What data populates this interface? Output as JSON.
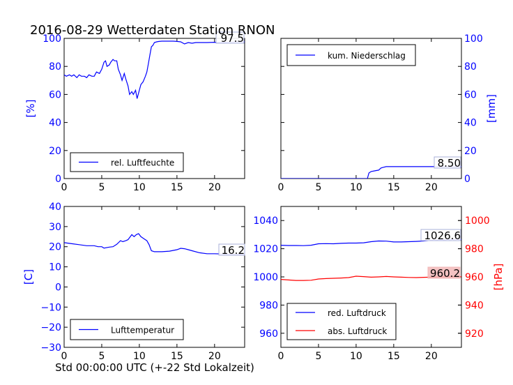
{
  "chart_data": {
    "title": "2016-08-29 Wetterdaten Station RNON",
    "xlabel": "Std 00:00:00 UTC (+-22 Std Lokalzeit)",
    "colors": {
      "primary": "#0000ff",
      "secondary": "#ff0000",
      "frame": "#000000"
    },
    "panels": [
      {
        "id": "humidity",
        "type": "line",
        "ylabel": "[%]",
        "ylabel_side": "left",
        "xlim": [
          0,
          24
        ],
        "ylim": [
          0,
          100
        ],
        "xticks": [
          0,
          5,
          10,
          15,
          20
        ],
        "yticks": [
          0,
          20,
          40,
          60,
          80,
          100
        ],
        "legend_position": "lower-left",
        "series": [
          {
            "name": "rel. Luftfeuchte",
            "color": "#0000ff",
            "last_value_label": "97.5",
            "x": [
              0,
              0.3,
              0.7,
              1.0,
              1.3,
              1.7,
              2.0,
              2.3,
              2.7,
              3.0,
              3.3,
              3.7,
              4.0,
              4.3,
              4.7,
              5.0,
              5.3,
              5.5,
              5.7,
              6.0,
              6.2,
              6.5,
              6.7,
              7.0,
              7.2,
              7.5,
              7.7,
              8.0,
              8.2,
              8.5,
              8.7,
              9.0,
              9.2,
              9.5,
              9.7,
              10.0,
              10.2,
              10.5,
              10.8,
              11.0,
              11.2,
              11.4,
              11.6,
              11.8,
              12.0,
              12.3,
              12.6,
              13.0,
              13.5,
              14.0,
              14.5,
              15.0,
              15.5,
              16.0,
              16.5,
              17.0,
              17.5,
              18.0,
              19.0,
              20.0,
              21.0,
              22.0,
              23.0,
              24.0
            ],
            "y": [
              74,
              73,
              74,
              73,
              74,
              72,
              74,
              73,
              73,
              72,
              74,
              73,
              73,
              76,
              75,
              78,
              83,
              84,
              80,
              81,
              83,
              85,
              84,
              84,
              78,
              74,
              70,
              75,
              71,
              66,
              60,
              62,
              60,
              63,
              57,
              63,
              67,
              69,
              73,
              76,
              82,
              88,
              94,
              95,
              97,
              97.5,
              97.8,
              98,
              98,
              98,
              98,
              97.8,
              97.5,
              96,
              97,
              96.5,
              97,
              97,
              97,
              97.2,
              97,
              97.3,
              97.5,
              97.5
            ]
          }
        ]
      },
      {
        "id": "precipitation",
        "type": "line",
        "ylabel": "[mm]",
        "ylabel_side": "right",
        "xlim": [
          0,
          24
        ],
        "ylim": [
          0,
          100
        ],
        "xticks": [
          0,
          5,
          10,
          15,
          20
        ],
        "yticks": [
          0,
          20,
          40,
          60,
          80,
          100
        ],
        "legend_position": "upper-left",
        "series": [
          {
            "name": "kum. Niederschlag",
            "color": "#0000ff",
            "last_value_label": "8.50",
            "x": [
              0,
              11.5,
              11.7,
              12.0,
              12.5,
              13.0,
              13.3,
              13.6,
              14.0,
              15.0,
              16.0,
              18.0,
              20.0,
              22.0,
              24.0
            ],
            "y": [
              0,
              0,
              4,
              5,
              5.5,
              6,
              7.5,
              8,
              8.5,
              8.5,
              8.5,
              8.5,
              8.5,
              8.5,
              8.5
            ]
          }
        ]
      },
      {
        "id": "temperature",
        "type": "line",
        "ylabel": "[C]",
        "ylabel_side": "left",
        "xlim": [
          0,
          24
        ],
        "ylim": [
          -30,
          40
        ],
        "xticks": [
          0,
          5,
          10,
          15,
          20
        ],
        "yticks": [
          -30,
          -20,
          -10,
          0,
          10,
          20,
          30,
          40
        ],
        "legend_position": "lower-left",
        "series": [
          {
            "name": "Lufttemperatur",
            "color": "#0000ff",
            "last_value_label": "16.2",
            "x": [
              0,
              1,
              2,
              3,
              4,
              4.5,
              5,
              5.3,
              6,
              6.5,
              7,
              7.5,
              7.8,
              8.2,
              8.5,
              9.0,
              9.3,
              9.6,
              9.9,
              10.2,
              10.6,
              11.0,
              11.3,
              11.6,
              12.0,
              13.0,
              14.0,
              15.0,
              15.5,
              16.0,
              16.5,
              17.0,
              18.0,
              19.0,
              20.0,
              21.0,
              22.0,
              23.0,
              24.0
            ],
            "y": [
              22,
              21.5,
              21,
              20.5,
              20.5,
              20,
              20,
              19.3,
              19.8,
              20,
              21.2,
              23,
              22.5,
              23,
              23.5,
              26,
              25,
              26,
              26.5,
              25,
              24,
              23,
              21,
              18,
              17.5,
              17.5,
              17.8,
              18.5,
              19.2,
              19,
              18.5,
              18,
              17,
              16.5,
              16.5,
              16.4,
              16.2,
              16.2,
              16.2
            ]
          }
        ]
      },
      {
        "id": "pressure",
        "type": "line",
        "ylabel": "[hPa]",
        "ylabel_side": "right",
        "xlim": [
          0,
          24
        ],
        "ylim": [
          950,
          1050
        ],
        "ylim_right": [
          910,
          1010
        ],
        "xticks": [
          0,
          5,
          10,
          15,
          20
        ],
        "yticks": [
          960,
          980,
          1000,
          1020,
          1040
        ],
        "yticks_right": [
          920,
          940,
          960,
          980,
          1000
        ],
        "legend_position": "lower-left",
        "series": [
          {
            "name": "red. Luftdruck",
            "color": "#0000ff",
            "axis": "left",
            "last_value_label": "1026.6",
            "x": [
              0,
              1,
              2,
              3,
              4,
              5,
              6,
              7,
              8,
              9,
              10,
              11,
              12,
              13,
              14,
              15,
              16,
              17,
              18,
              19,
              20,
              21,
              22,
              23,
              24
            ],
            "y": [
              1022.5,
              1022.3,
              1022.3,
              1022.2,
              1022.5,
              1023.5,
              1023.6,
              1023.5,
              1023.8,
              1024,
              1024,
              1024.2,
              1025,
              1025.5,
              1025.4,
              1024.8,
              1024.8,
              1025,
              1025.2,
              1025.5,
              1026,
              1026.2,
              1026.4,
              1026.6,
              1026.6
            ]
          },
          {
            "name": "abs. Luftdruck",
            "color": "#ff0000",
            "axis": "right",
            "last_value_label": "960.2",
            "x": [
              0,
              1,
              2,
              3,
              4,
              5,
              6,
              7,
              8,
              9,
              10,
              11,
              12,
              13,
              14,
              15,
              16,
              17,
              18,
              19,
              20,
              21,
              22,
              23,
              24
            ],
            "y": [
              958.2,
              957.8,
              957.5,
              957.5,
              957.6,
              958.5,
              958.8,
              959,
              959.2,
              959.5,
              960.5,
              960.2,
              959.8,
              960,
              960.3,
              960,
              959.8,
              959.6,
              959.5,
              959.7,
              959.8,
              960,
              960.1,
              960.2,
              960.2
            ]
          }
        ]
      }
    ]
  }
}
